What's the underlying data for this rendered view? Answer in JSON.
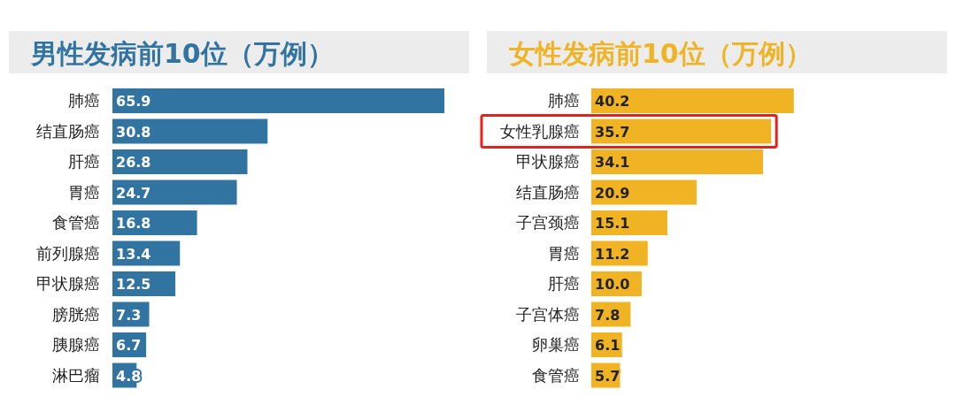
{
  "chart_data": [
    {
      "type": "bar",
      "orientation": "horizontal",
      "title": "男性发病前10位（万例）",
      "categories": [
        "肺癌",
        "结直肠癌",
        "肝癌",
        "胃癌",
        "食管癌",
        "前列腺癌",
        "甲状腺癌",
        "膀胱癌",
        "胰腺癌",
        "淋巴瘤"
      ],
      "values": [
        65.9,
        30.8,
        26.8,
        24.7,
        16.8,
        13.4,
        12.5,
        7.3,
        6.7,
        4.8
      ],
      "value_labels": [
        "65.9",
        "30.8",
        "26.8",
        "24.7",
        "16.8",
        "13.4",
        "12.5",
        "7.3",
        "6.7",
        "4.8"
      ],
      "color": "#3274a1"
    },
    {
      "type": "bar",
      "orientation": "horizontal",
      "title": "女性发病前10位（万例）",
      "categories": [
        "肺癌",
        "女性乳腺癌",
        "甲状腺癌",
        "结直肠癌",
        "子宫颈癌",
        "胃癌",
        "肝癌",
        "子宫体癌",
        "卵巢癌",
        "食管癌"
      ],
      "values": [
        40.2,
        35.7,
        34.1,
        20.9,
        15.1,
        11.2,
        10.0,
        7.8,
        6.1,
        5.7
      ],
      "value_labels": [
        "40.2",
        "35.7",
        "34.1",
        "20.9",
        "15.1",
        "11.2",
        "10.0",
        "7.8",
        "6.1",
        "5.7"
      ],
      "color": "#f0b323"
    }
  ]
}
